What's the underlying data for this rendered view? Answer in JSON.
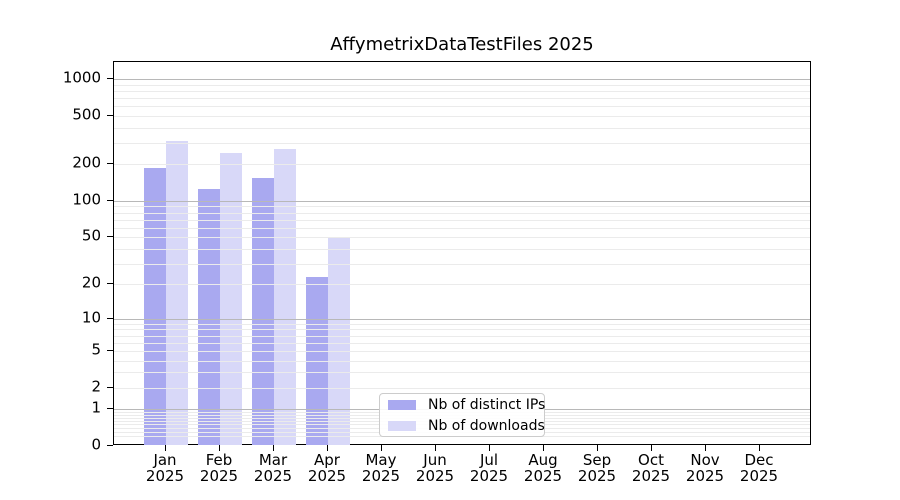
{
  "chart_data": {
    "type": "bar",
    "title": "AffymetrixDataTestFiles 2025",
    "categories": [
      {
        "label": "Jan",
        "sublabel": "2025"
      },
      {
        "label": "Feb",
        "sublabel": "2025"
      },
      {
        "label": "Mar",
        "sublabel": "2025"
      },
      {
        "label": "Apr",
        "sublabel": "2025"
      },
      {
        "label": "May",
        "sublabel": "2025"
      },
      {
        "label": "Jun",
        "sublabel": "2025"
      },
      {
        "label": "Jul",
        "sublabel": "2025"
      },
      {
        "label": "Aug",
        "sublabel": "2025"
      },
      {
        "label": "Sep",
        "sublabel": "2025"
      },
      {
        "label": "Oct",
        "sublabel": "2025"
      },
      {
        "label": "Nov",
        "sublabel": "2025"
      },
      {
        "label": "Dec",
        "sublabel": "2025"
      }
    ],
    "series": [
      {
        "name": "Nb of distinct IPs",
        "color": "#a9a9f0",
        "values": [
          185,
          126,
          155,
          23,
          0,
          0,
          0,
          0,
          0,
          0,
          0,
          0
        ]
      },
      {
        "name": "Nb of downloads",
        "color": "#d8d8f8",
        "values": [
          310,
          248,
          268,
          50,
          0,
          0,
          0,
          0,
          0,
          0,
          0,
          0
        ]
      }
    ],
    "y_axis": {
      "scale": "log1p",
      "tick_values": [
        0,
        1,
        2,
        5,
        10,
        20,
        50,
        100,
        200,
        500,
        1000
      ],
      "tick_labels": [
        "0",
        "1",
        "2",
        "5",
        "10",
        "20",
        "50",
        "100",
        "200",
        "500",
        "1000"
      ],
      "major_gridline_values": [
        1,
        10,
        100,
        1000
      ],
      "ylim": [
        0,
        1380
      ]
    },
    "legend_position": "lower center-left",
    "grid": true,
    "colors": {
      "major_gridline": "#b8b8b8",
      "minor_gridline": "#ebebeb",
      "axis": "#000000",
      "legend_border": "#cccccc"
    }
  }
}
